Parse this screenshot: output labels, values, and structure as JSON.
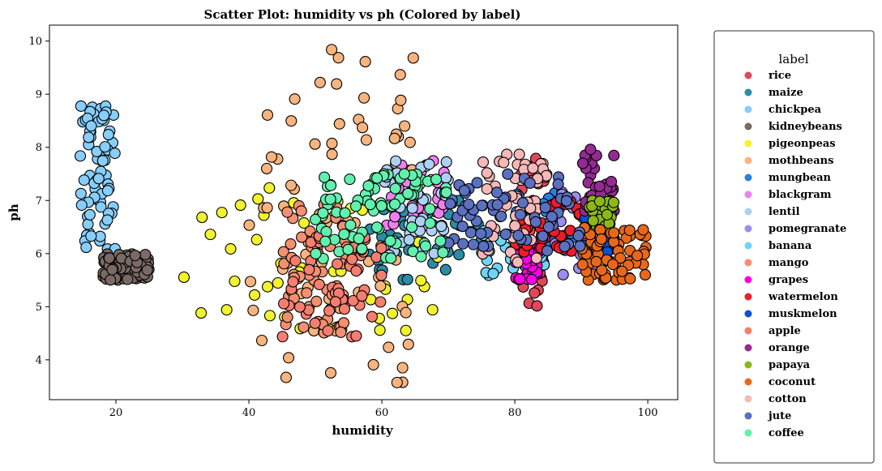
{
  "chart_data": {
    "type": "scatter",
    "title": "Scatter Plot: humidity vs ph (Colored by label)",
    "xlabel": "humidity",
    "ylabel": "ph",
    "xlim": [
      10,
      104.5
    ],
    "ylim": [
      3.25,
      10.3
    ],
    "xticks": [
      20,
      40,
      60,
      80,
      100
    ],
    "yticks": [
      4,
      5,
      6,
      7,
      8,
      9,
      10
    ],
    "grid": false,
    "legend": {
      "title": "label",
      "placement": "outside-right"
    },
    "series": [
      {
        "name": "rice",
        "color": "#e0475a",
        "clusters": [
          {
            "x": [
              80,
              85
            ],
            "y": [
              5.0,
              7.8
            ],
            "n": 40
          }
        ]
      },
      {
        "name": "maize",
        "color": "#2a8da5",
        "clusters": [
          {
            "x": [
              58,
              75
            ],
            "y": [
              5.5,
              7.0
            ],
            "n": 45
          }
        ]
      },
      {
        "name": "chickpea",
        "color": "#87cefa",
        "clusters": [
          {
            "x": [
              14.5,
              20
            ],
            "y": [
              6.0,
              8.8
            ],
            "n": 70
          }
        ]
      },
      {
        "name": "kidneybeans",
        "color": "#7a6a66",
        "clusters": [
          {
            "x": [
              18,
              25
            ],
            "y": [
              5.5,
              6.0
            ],
            "n": 80
          }
        ]
      },
      {
        "name": "pigeonpeas",
        "color": "#f2f230",
        "clusters": [
          {
            "x": [
              30,
              70
            ],
            "y": [
              4.5,
              7.3
            ],
            "n": 55
          }
        ]
      },
      {
        "name": "mothbeans",
        "color": "#f8b47e",
        "clusters": [
          {
            "x": [
              40,
              65
            ],
            "y": [
              3.5,
              9.9
            ],
            "n": 75
          }
        ]
      },
      {
        "name": "mungbean",
        "color": "#2a7ee0",
        "clusters": [
          {
            "x": [
              80,
              90
            ],
            "y": [
              6.2,
              7.2
            ],
            "n": 30
          }
        ]
      },
      {
        "name": "blackgram",
        "color": "#f080f0",
        "clusters": [
          {
            "x": [
              60,
              70
            ],
            "y": [
              6.5,
              7.8
            ],
            "n": 35
          }
        ]
      },
      {
        "name": "lentil",
        "color": "#add0f5",
        "clusters": [
          {
            "x": [
              60,
              70
            ],
            "y": [
              5.9,
              7.8
            ],
            "n": 45
          }
        ]
      },
      {
        "name": "pomegranate",
        "color": "#9c8cf0",
        "clusters": [
          {
            "x": [
              85,
              95
            ],
            "y": [
              5.6,
              7.2
            ],
            "n": 35
          }
        ]
      },
      {
        "name": "banana",
        "color": "#6fd4f5",
        "clusters": [
          {
            "x": [
              75,
              85
            ],
            "y": [
              5.5,
              6.5
            ],
            "n": 35
          }
        ]
      },
      {
        "name": "mango",
        "color": "#f29070",
        "clusters": [
          {
            "x": [
              45,
              55
            ],
            "y": [
              4.5,
              7.0
            ],
            "n": 60
          }
        ]
      },
      {
        "name": "grapes",
        "color": "#ff00e6",
        "clusters": [
          {
            "x": [
              80,
              84
            ],
            "y": [
              5.5,
              6.2
            ],
            "n": 30
          }
        ]
      },
      {
        "name": "watermelon",
        "color": "#ee1c2b",
        "clusters": [
          {
            "x": [
              80,
              90
            ],
            "y": [
              6.0,
              7.0
            ],
            "n": 35
          }
        ]
      },
      {
        "name": "muskmelon",
        "color": "#0c50d8",
        "clusters": [
          {
            "x": [
              90,
              95
            ],
            "y": [
              6.0,
              6.8
            ],
            "n": 20
          }
        ]
      },
      {
        "name": "apple",
        "color": "#f57e70",
        "clusters": [
          {
            "x": [
              45,
              60
            ],
            "y": [
              4.4,
              6.5
            ],
            "n": 55
          }
        ]
      },
      {
        "name": "orange",
        "color": "#942a92",
        "clusters": [
          {
            "x": [
              90,
              95
            ],
            "y": [
              6.8,
              8.0
            ],
            "n": 45
          }
        ]
      },
      {
        "name": "papaya",
        "color": "#8cb818",
        "clusters": [
          {
            "x": [
              91,
              95
            ],
            "y": [
              6.5,
              7.0
            ],
            "n": 35
          }
        ]
      },
      {
        "name": "coconut",
        "color": "#e8681a",
        "clusters": [
          {
            "x": [
              90,
              100
            ],
            "y": [
              5.5,
              6.5
            ],
            "n": 70
          }
        ]
      },
      {
        "name": "cotton",
        "color": "#f7b8b8",
        "clusters": [
          {
            "x": [
              75,
              85
            ],
            "y": [
              5.8,
              8.0
            ],
            "n": 55
          }
        ]
      },
      {
        "name": "jute",
        "color": "#5a70c0",
        "clusters": [
          {
            "x": [
              70,
              90
            ],
            "y": [
              6.0,
              7.5
            ],
            "n": 65
          }
        ]
      },
      {
        "name": "coffee",
        "color": "#62f0ae",
        "clusters": [
          {
            "x": [
              50,
              70
            ],
            "y": [
              5.9,
              7.5
            ],
            "n": 80
          }
        ]
      }
    ]
  }
}
